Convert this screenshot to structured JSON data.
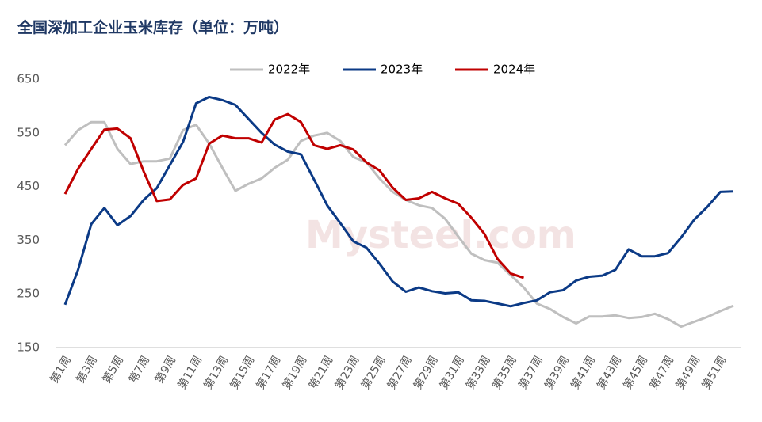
{
  "chart_data": {
    "type": "line",
    "title": "全国深加工企业玉米库存（单位：万吨）",
    "watermark": "Mysteel.com",
    "categories": [
      "第1周",
      null,
      "第3周",
      null,
      "第5周",
      null,
      "第7周",
      null,
      "第9周",
      null,
      "第11周",
      null,
      "第13周",
      null,
      "第15周",
      null,
      "第17周",
      null,
      "第19周",
      null,
      "第21周",
      null,
      "第23周",
      null,
      "第25周",
      null,
      "第27周",
      null,
      "第29周",
      null,
      "第31周",
      null,
      "第33周",
      null,
      "第35周",
      null,
      "第37周",
      null,
      "第39周",
      null,
      "第41周",
      null,
      "第43周",
      null,
      "第45周",
      null,
      "第47周",
      null,
      "第49周",
      null,
      "第51周",
      null
    ],
    "series": [
      {
        "name": "2022年",
        "color": "#bfbfbf",
        "values": [
          527,
          555,
          570,
          570,
          520,
          492,
          497,
          497,
          502,
          555,
          565,
          530,
          485,
          442,
          455,
          465,
          485,
          500,
          535,
          545,
          550,
          535,
          505,
          495,
          465,
          440,
          425,
          415,
          410,
          390,
          357,
          325,
          313,
          308,
          285,
          262,
          232,
          222,
          207,
          195,
          208,
          208,
          210,
          205,
          207,
          213,
          203,
          189,
          198,
          207,
          218,
          228
        ]
      },
      {
        "name": "2023年",
        "color": "#0b3a86",
        "values": [
          230,
          295,
          380,
          410,
          378,
          395,
          425,
          447,
          490,
          533,
          605,
          617,
          611,
          602,
          576,
          550,
          528,
          515,
          510,
          463,
          415,
          382,
          348,
          336,
          306,
          273,
          254,
          262,
          255,
          251,
          253,
          238,
          237,
          232,
          227,
          233,
          238,
          253,
          257,
          275,
          282,
          284,
          295,
          333,
          320,
          320,
          326,
          355,
          388,
          412,
          440,
          441
        ]
      },
      {
        "name": "2024年",
        "color": "#c00000",
        "values": [
          436,
          483,
          520,
          556,
          558,
          540,
          478,
          423,
          426,
          453,
          465,
          530,
          545,
          540,
          540,
          532,
          575,
          585,
          570,
          527,
          520,
          527,
          519,
          495,
          480,
          448,
          425,
          428,
          440,
          428,
          418,
          392,
          362,
          315,
          288,
          280,
          null,
          null,
          null,
          null,
          null,
          null,
          null,
          null,
          null,
          null,
          null,
          null,
          null,
          null,
          null,
          null
        ]
      }
    ],
    "ylim": [
      150,
      650
    ],
    "yticks": [
      150,
      250,
      350,
      450,
      550,
      650
    ],
    "grid": false,
    "legend": "top"
  }
}
